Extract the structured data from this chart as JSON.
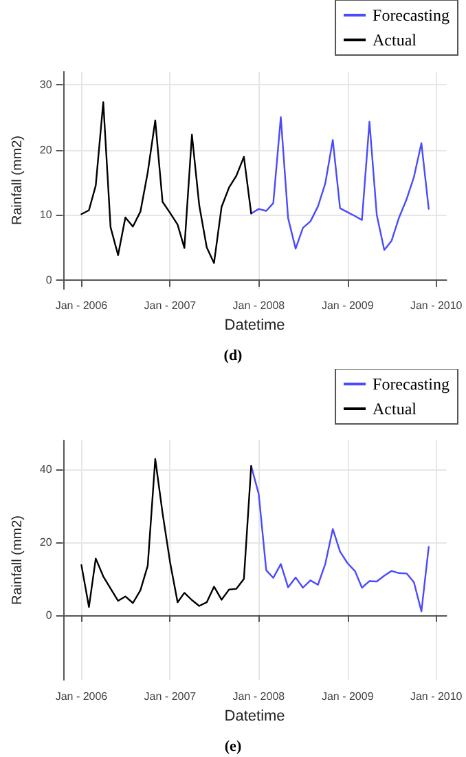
{
  "chart_data": [
    {
      "type": "line",
      "xlabel": "Datetime",
      "ylabel": "Rainfall (mm2)",
      "annotations": [
        "(d)"
      ],
      "legend": "top right",
      "grid": true,
      "xlim": [
        "2005-10-17",
        "2010-02-12"
      ],
      "ylim": [
        -1.4,
        32
      ],
      "yticks": [
        0,
        10,
        20,
        30
      ],
      "xticks": [
        {
          "value": "2006-01",
          "label": "Jan - 2006"
        },
        {
          "value": "2007-01",
          "label": "Jan - 2007"
        },
        {
          "value": "2008-01",
          "label": "Jan - 2008"
        },
        {
          "value": "2009-01",
          "label": "Jan - 2009"
        },
        {
          "value": "2010-01",
          "label": "Jan - 2010"
        }
      ],
      "series": [
        {
          "name": "Forecasting",
          "color": "#4a4aff",
          "x": [
            "2007-12",
            "2008-01",
            "2008-02",
            "2008-03",
            "2008-04",
            "2008-05",
            "2008-06",
            "2008-07",
            "2008-08",
            "2008-09",
            "2008-10",
            "2008-11",
            "2008-12",
            "2009-01",
            "2009-02",
            "2009-03",
            "2009-04",
            "2009-05",
            "2009-06",
            "2009-07",
            "2009-08",
            "2009-09",
            "2009-10",
            "2009-11",
            "2009-12"
          ],
          "values": [
            10.2,
            10.9,
            10.6,
            11.8,
            25,
            9.5,
            4.8,
            8,
            9,
            11.3,
            14.8,
            21.5,
            11,
            10.4,
            9.8,
            9.2,
            24.3,
            10,
            4.6,
            6,
            9.6,
            12.4,
            15.8,
            21,
            10.9
          ]
        },
        {
          "name": "Actual",
          "color": "#000000",
          "x": [
            "2006-01",
            "2006-02",
            "2006-03",
            "2006-04",
            "2006-05",
            "2006-06",
            "2006-07",
            "2006-08",
            "2006-09",
            "2006-10",
            "2006-11",
            "2006-12",
            "2007-01",
            "2007-02",
            "2007-03",
            "2007-04",
            "2007-05",
            "2007-06",
            "2007-07",
            "2007-08",
            "2007-09",
            "2007-10",
            "2007-11",
            "2007-12"
          ],
          "values": [
            10.1,
            10.7,
            14.5,
            27.3,
            8.1,
            3.8,
            9.6,
            8.2,
            10.5,
            16.5,
            24.5,
            12,
            10.3,
            8.5,
            4.9,
            22.3,
            11.5,
            5,
            2.6,
            11.2,
            14.2,
            16,
            18.9,
            10.2
          ]
        }
      ]
    },
    {
      "type": "line",
      "xlabel": "Datetime",
      "ylabel": "Rainfall (mm2)",
      "annotations": [
        "(e)"
      ],
      "legend": "top right",
      "grid": true,
      "xlim": [
        "2005-10-17",
        "2010-02-12"
      ],
      "ylim": [
        -17.8,
        47.9
      ],
      "yticks": [
        0,
        20,
        40
      ],
      "xticks": [
        {
          "value": "2006-01",
          "label": "Jan - 2006"
        },
        {
          "value": "2007-01",
          "label": "Jan - 2007"
        },
        {
          "value": "2008-01",
          "label": "Jan - 2008"
        },
        {
          "value": "2009-01",
          "label": "Jan - 2009"
        },
        {
          "value": "2010-01",
          "label": "Jan - 2010"
        }
      ],
      "series": [
        {
          "name": "Forecasting",
          "color": "#4a4aff",
          "x": [
            "2007-12",
            "2008-01",
            "2008-02",
            "2008-03",
            "2008-04",
            "2008-05",
            "2008-06",
            "2008-07",
            "2008-08",
            "2008-09",
            "2008-10",
            "2008-11",
            "2008-12",
            "2009-01",
            "2009-02",
            "2009-03",
            "2009-04",
            "2009-05",
            "2009-06",
            "2009-07",
            "2009-08",
            "2009-09",
            "2009-10",
            "2009-11",
            "2009-12"
          ],
          "values": [
            40.9,
            33.2,
            12.3,
            10.2,
            14,
            7.6,
            10.3,
            7.5,
            9.5,
            8.3,
            14,
            23.6,
            17.4,
            14.2,
            12,
            7.5,
            9.3,
            9.2,
            10.8,
            12.1,
            11.5,
            11.4,
            9,
            1,
            18.7
          ]
        },
        {
          "name": "Actual",
          "color": "#000000",
          "x": [
            "2006-01",
            "2006-02",
            "2006-03",
            "2006-04",
            "2006-05",
            "2006-06",
            "2006-07",
            "2006-08",
            "2006-09",
            "2006-10",
            "2006-11",
            "2006-12",
            "2007-01",
            "2007-02",
            "2007-03",
            "2007-04",
            "2007-05",
            "2007-06",
            "2007-07",
            "2007-08",
            "2007-09",
            "2007-10",
            "2007-11",
            "2007-12"
          ],
          "values": [
            13.7,
            2.2,
            15.5,
            10.6,
            7.3,
            3.9,
            5.1,
            3.3,
            6.8,
            13.5,
            42.8,
            28,
            14.5,
            3.5,
            6.1,
            4.1,
            2.5,
            3.5,
            7.8,
            4.2,
            7,
            7.2,
            9.9,
            40.9
          ]
        }
      ]
    }
  ]
}
